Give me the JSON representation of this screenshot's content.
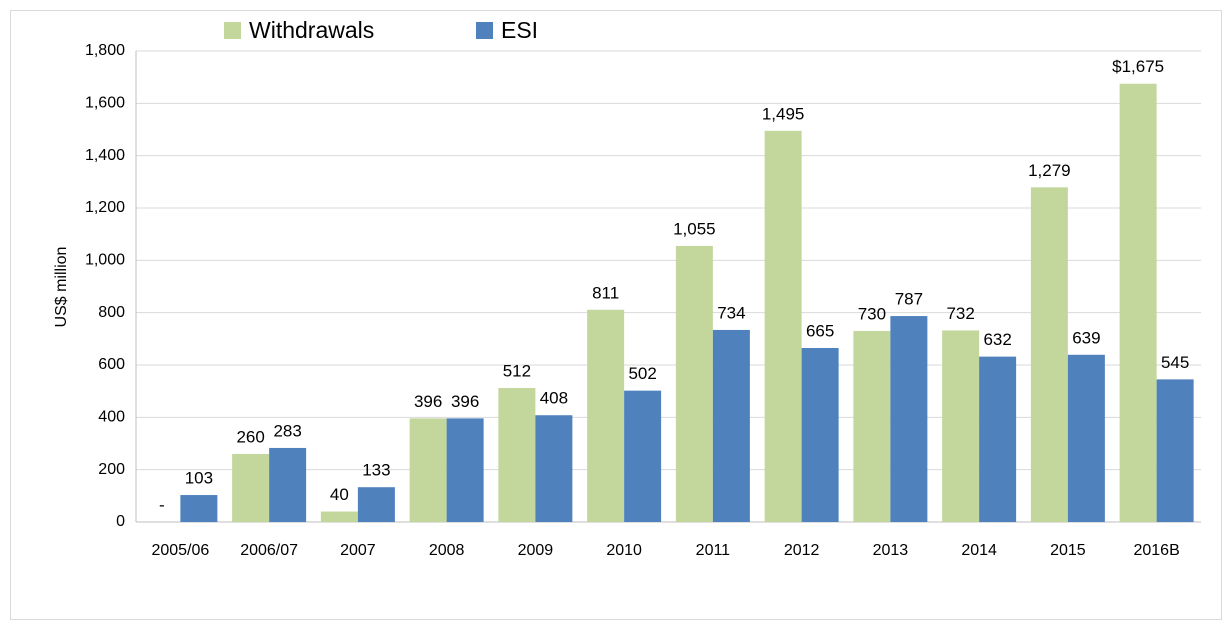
{
  "chart_data": {
    "type": "bar",
    "y_axis_label": "US$ million",
    "categories": [
      "2005/06",
      "2006/07",
      "2007",
      "2008",
      "2009",
      "2010",
      "2011",
      "2012",
      "2013",
      "2014",
      "2015",
      "2016B"
    ],
    "series": [
      {
        "name": "Withdrawals",
        "color": "#c3d69b",
        "values": [
          0,
          260,
          40,
          396,
          512,
          811,
          1055,
          1495,
          730,
          732,
          1279,
          1675
        ],
        "value_labels": [
          "-",
          "260",
          "40",
          "396",
          "512",
          "811",
          "1,055",
          "1,495",
          "730",
          "732",
          "1,279",
          "$1,675"
        ]
      },
      {
        "name": "ESI",
        "color": "#4f81bd",
        "values": [
          103,
          283,
          133,
          396,
          408,
          502,
          734,
          665,
          787,
          632,
          639,
          545
        ],
        "value_labels": [
          "103",
          "283",
          "133",
          "396",
          "408",
          "502",
          "734",
          "665",
          "787",
          "632",
          "639",
          "545"
        ]
      }
    ],
    "ylim": [
      0,
      1800
    ],
    "yticks": [
      0,
      200,
      400,
      600,
      800,
      {
        "value": 1000,
        "label": "1,000"
      },
      {
        "value": 1200,
        "label": "1,200"
      },
      {
        "value": 1400,
        "label": "1,400"
      },
      {
        "value": 1600,
        "label": "1,600"
      },
      {
        "value": 1800,
        "label": "1,800"
      }
    ],
    "grid": true,
    "legend": "top"
  }
}
